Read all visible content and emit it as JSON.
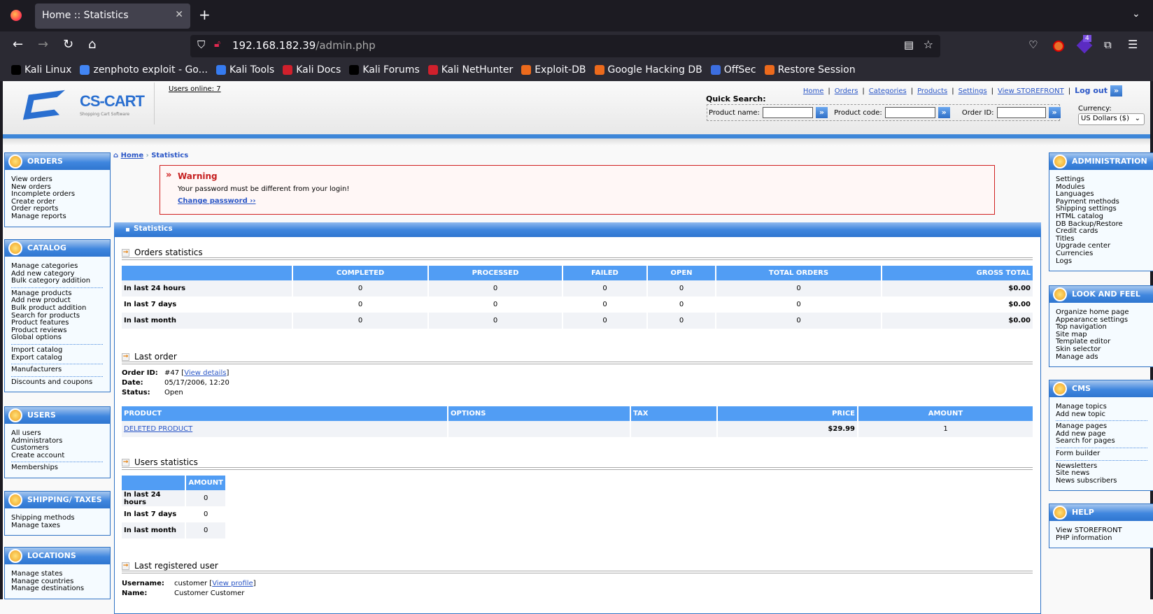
{
  "browser": {
    "tab_title": "Home :: Statistics",
    "url_host": "192.168.182.39",
    "url_path": "/admin.php",
    "ext_badge": "4",
    "bookmarks": [
      {
        "label": "Kali Linux",
        "color": "#000000"
      },
      {
        "label": "zenphoto exploit - Go...",
        "color": "#4285f4"
      },
      {
        "label": "Kali Tools",
        "color": "#367bf0"
      },
      {
        "label": "Kali Docs",
        "color": "#d0202c"
      },
      {
        "label": "Kali Forums",
        "color": "#000000"
      },
      {
        "label": "Kali NetHunter",
        "color": "#d0202c"
      },
      {
        "label": "Exploit-DB",
        "color": "#ec6a1c"
      },
      {
        "label": "Google Hacking DB",
        "color": "#ec6a1c"
      },
      {
        "label": "OffSec",
        "color": "#3c6ee0"
      },
      {
        "label": "Restore Session",
        "color": "#ec6a1c"
      }
    ]
  },
  "header": {
    "logo_text": "CS-CART",
    "logo_sub": "Shopping Cart Software",
    "users_online": "Users online: 7",
    "top_links": [
      "Home",
      "Orders",
      "Categories",
      "Products",
      "Settings",
      "View STOREFRONT"
    ],
    "logout": "Log out",
    "quick_search": "Quick Search:",
    "product_name": "Product name:",
    "product_code": "Product code:",
    "order_id": "Order ID:",
    "currency_label": "Currency:",
    "currency_value": "US Dollars ($)"
  },
  "left_sidebar": [
    {
      "title": "ORDERS",
      "groups": [
        [
          "View orders",
          "New orders",
          "Incomplete orders",
          "Create order",
          "Order reports",
          "Manage reports"
        ]
      ]
    },
    {
      "title": "CATALOG",
      "groups": [
        [
          "Manage categories",
          "Add new category",
          "Bulk category addition"
        ],
        [
          "Manage products",
          "Add new product",
          "Bulk product addition",
          "Search for products",
          "Product features",
          "Product reviews",
          "Global options"
        ],
        [
          "Import catalog",
          "Export catalog"
        ],
        [
          "Manufacturers"
        ],
        [
          "Discounts and coupons"
        ]
      ]
    },
    {
      "title": "USERS",
      "groups": [
        [
          "All users",
          "Administrators",
          "Customers",
          "Create account"
        ],
        [
          "Memberships"
        ]
      ]
    },
    {
      "title": "SHIPPING/ TAXES",
      "groups": [
        [
          "Shipping methods",
          "Manage taxes"
        ]
      ]
    },
    {
      "title": "LOCATIONS",
      "groups": [
        [
          "Manage states",
          "Manage countries",
          "Manage destinations"
        ]
      ]
    }
  ],
  "right_sidebar": [
    {
      "title": "ADMINISTRATION",
      "groups": [
        [
          "Settings",
          "Modules",
          "Languages",
          "Payment methods",
          "Shipping settings",
          "HTML catalog",
          "DB Backup/Restore",
          "Credit cards",
          "Titles",
          "Upgrade center",
          "Currencies",
          "Logs"
        ]
      ]
    },
    {
      "title": "LOOK AND FEEL",
      "groups": [
        [
          "Organize home page",
          "Appearance settings",
          "Top navigation",
          "Site map",
          "Template editor",
          "Skin selector",
          "Manage ads"
        ]
      ]
    },
    {
      "title": "CMS",
      "groups": [
        [
          "Manage topics",
          "Add new topic"
        ],
        [
          "Manage pages",
          "Add new page",
          "Search for pages"
        ],
        [
          "Form builder"
        ],
        [
          "Newsletters",
          "Site news",
          "News subscribers"
        ]
      ]
    },
    {
      "title": "HELP",
      "groups": [
        [
          "View STOREFRONT",
          "PHP information"
        ]
      ]
    }
  ],
  "breadcrumb": {
    "home": "Home",
    "current": "Statistics"
  },
  "warning": {
    "title": "Warning",
    "message": "Your password must be different from your login!",
    "link": "Change password ››"
  },
  "panel_title": "Statistics",
  "orders_stats": {
    "title": "Orders statistics",
    "columns": [
      "",
      "COMPLETED",
      "PROCESSED",
      "FAILED",
      "OPEN",
      "TOTAL ORDERS",
      "GROSS TOTAL"
    ],
    "rows": [
      [
        "In last 24 hours",
        "0",
        "0",
        "0",
        "0",
        "0",
        "$0.00"
      ],
      [
        "In last 7 days",
        "0",
        "0",
        "0",
        "0",
        "0",
        "$0.00"
      ],
      [
        "In last month",
        "0",
        "0",
        "0",
        "0",
        "0",
        "$0.00"
      ]
    ]
  },
  "last_order": {
    "title": "Last order",
    "order_id_label": "Order ID:",
    "order_id": "#47",
    "view_details": "View details",
    "date_label": "Date:",
    "date": "05/17/2006, 12:20",
    "status_label": "Status:",
    "status": "Open",
    "columns": [
      "PRODUCT",
      "OPTIONS",
      "TAX",
      "PRICE",
      "AMOUNT"
    ],
    "rows": [
      [
        "DELETED PRODUCT",
        "",
        "",
        "$29.99",
        "1"
      ]
    ]
  },
  "users_stats": {
    "title": "Users statistics",
    "columns": [
      "",
      "AMOUNT"
    ],
    "rows": [
      [
        "In last 24 hours",
        "0"
      ],
      [
        "In last 7 days",
        "0"
      ],
      [
        "In last month",
        "0"
      ]
    ]
  },
  "last_user": {
    "title": "Last registered user",
    "username_label": "Username:",
    "username": "customer",
    "view_profile": "View profile",
    "name_label": "Name:",
    "name": "Customer Customer"
  }
}
